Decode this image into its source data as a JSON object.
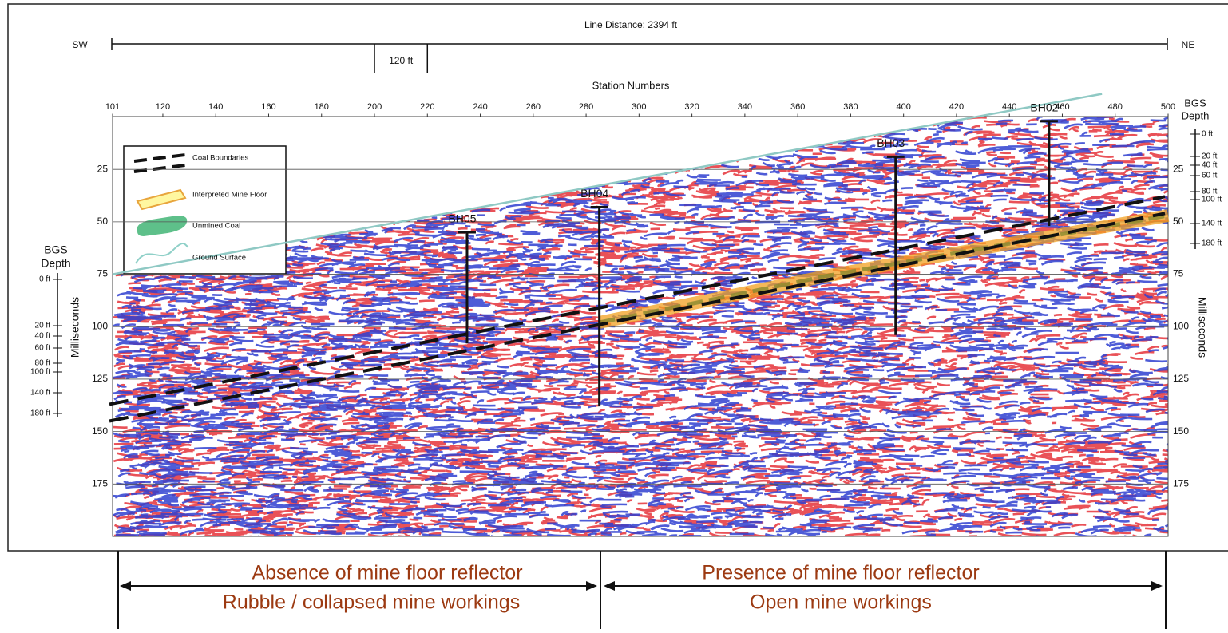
{
  "chart_data": {
    "type": "seismic-section",
    "title": "Line Distance: 2394 ft",
    "direction_left": "SW",
    "direction_right": "NE",
    "scale_bar_label": "120 ft",
    "scale_bar_stations": [
      200,
      220
    ],
    "x_label": "Station Numbers",
    "y_label": "Milliseconds",
    "xlim": [
      101,
      500
    ],
    "xticks": [
      101,
      120,
      140,
      160,
      180,
      200,
      220,
      240,
      260,
      280,
      300,
      320,
      340,
      360,
      380,
      400,
      420,
      440,
      460,
      480,
      500
    ],
    "ylim": [
      0,
      200
    ],
    "yticks": [
      25,
      50,
      75,
      100,
      125,
      150,
      175
    ],
    "grid": true,
    "depth_label": [
      "BGS",
      "Depth"
    ],
    "depth_ticks": [
      {
        "value": 0,
        "label": "0 ft"
      },
      {
        "value": 20,
        "label": "20 ft"
      },
      {
        "value": 40,
        "label": "40 ft"
      },
      {
        "value": 60,
        "label": "60 ft"
      },
      {
        "value": 80,
        "label": "80 ft"
      },
      {
        "value": 100,
        "label": "100 ft"
      },
      {
        "value": 140,
        "label": "140 ft"
      },
      {
        "value": 180,
        "label": "180 ft"
      }
    ],
    "legend": [
      "Coal Boundaries",
      "Interpreted Mine Floor",
      "Unmined Coal",
      "Ground Surface"
    ],
    "boreholes": [
      {
        "name": "BH05",
        "station": 235,
        "top": 55,
        "bottom": 108
      },
      {
        "name": "BH04",
        "station": 285,
        "top": 43,
        "bottom": 138
      },
      {
        "name": "BH03",
        "station": 397,
        "top": 19,
        "bottom": 104
      },
      {
        "name": "BH02",
        "station": 455,
        "top": 2,
        "bottom": 52
      }
    ],
    "ground_surface": {
      "x": [
        101,
        475
      ],
      "y": [
        75,
        -11
      ]
    },
    "coal_boundaries": [
      {
        "x": [
          101,
          500
        ],
        "y": [
          137,
          38
        ]
      },
      {
        "x": [
          101,
          500
        ],
        "y": [
          145,
          46
        ]
      }
    ],
    "mine_floor": {
      "x": [
        285,
        355,
        370,
        500
      ],
      "y": [
        98,
        80,
        76,
        47
      ]
    },
    "zones": [
      {
        "lines": [
          "Absence of mine floor reflector",
          "Rubble / collapsed mine workings"
        ]
      },
      {
        "lines": [
          "Presence of mine floor reflector",
          "Open mine workings"
        ]
      }
    ]
  }
}
